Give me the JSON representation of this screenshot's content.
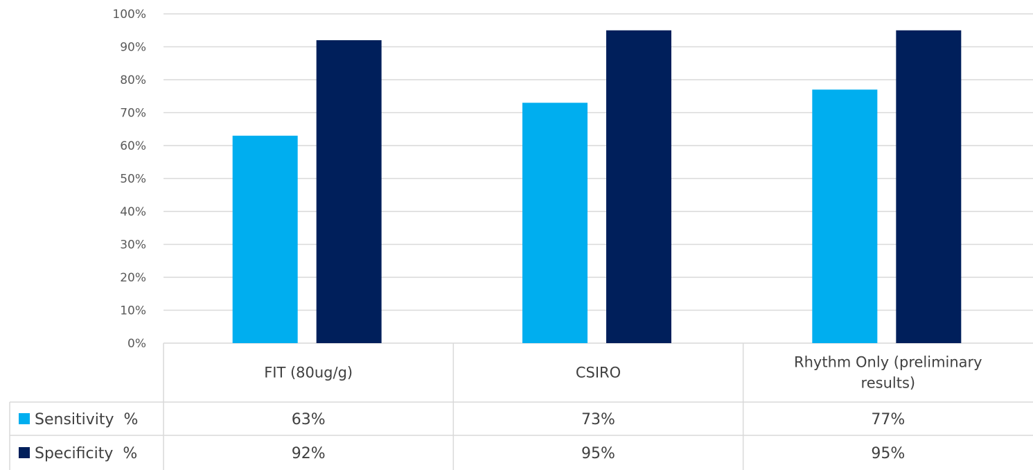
{
  "chart_data": {
    "type": "bar",
    "title": "",
    "xlabel": "",
    "ylabel": "",
    "ylim": [
      0,
      100
    ],
    "y_ticks": [
      "0%",
      "10%",
      "20%",
      "30%",
      "40%",
      "50%",
      "60%",
      "70%",
      "80%",
      "90%",
      "100%"
    ],
    "grid": true,
    "categories": [
      [
        "FIT (80ug/g)"
      ],
      [
        "CSIRO"
      ],
      [
        "Rhythm Only (preliminary",
        "results)"
      ]
    ],
    "series": [
      {
        "name": "Sensitivity  %",
        "color": "#00aeef",
        "values": [
          63,
          73,
          77
        ],
        "labels": [
          "63%",
          "73%",
          "77%"
        ]
      },
      {
        "name": "Specificity  %",
        "color": "#001f5b",
        "values": [
          92,
          95,
          95
        ],
        "labels": [
          "92%",
          "95%",
          "95%"
        ]
      }
    ],
    "legend": "data-table"
  }
}
